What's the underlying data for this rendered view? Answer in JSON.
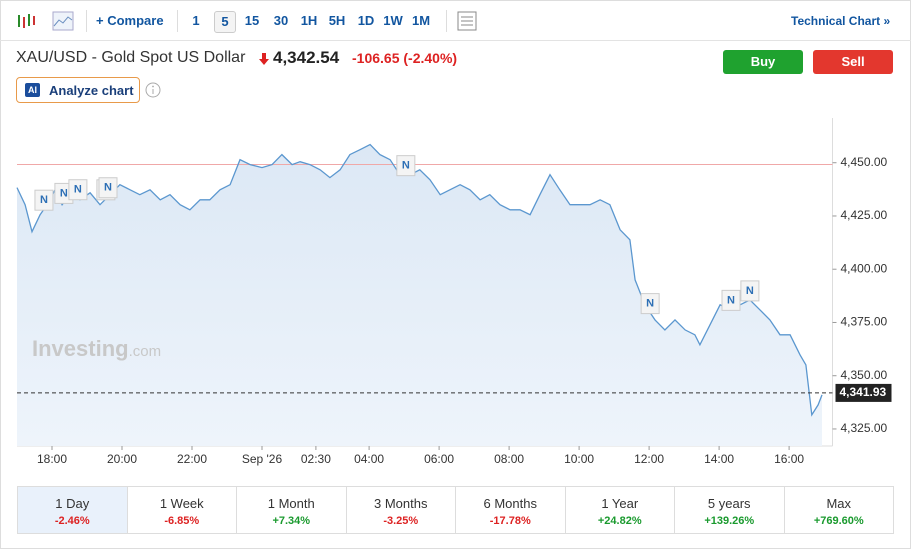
{
  "toolbar": {
    "compare": "Compare",
    "intervals": [
      "1",
      "5",
      "15",
      "30",
      "1H",
      "5H",
      "1D",
      "1W",
      "1M"
    ],
    "selected_index": 1,
    "technical": "Technical Chart »"
  },
  "header": {
    "title": "XAU/USD - Gold Spot US Dollar",
    "price": "4,342.54",
    "change": "-106.65",
    "change_pct": "(-2.40%)",
    "buy": "Buy",
    "sell": "Sell",
    "ai_badge": "AI",
    "analyze": "Analyze chart"
  },
  "watermark": {
    "brand": "Investing",
    "suffix": ".com"
  },
  "chart_data": {
    "type": "area",
    "color": "#5b97cf",
    "x": [
      0,
      0.23,
      0.43,
      0.66,
      0.86,
      1.09,
      1.29,
      1.51,
      1.8,
      2.09,
      2.37,
      2.66,
      2.94,
      3.23,
      3.51,
      3.8,
      4.09,
      4.37,
      4.66,
      4.94,
      5.23,
      5.51,
      5.8,
      6.09,
      6.37,
      6.66,
      7,
      7.29,
      7.57,
      7.86,
      8.09,
      8.37,
      8.66,
      8.94,
      9.23,
      9.51,
      9.8,
      10.09,
      10.37,
      10.66,
      10.94,
      11.23,
      11.51,
      11.8,
      12.09,
      12.37,
      12.66,
      12.94,
      13.23,
      13.51,
      13.8,
      14.09,
      14.37,
      14.66,
      14.94,
      15.23,
      15.51,
      15.8,
      16.09,
      16.37,
      16.66,
      16.94,
      17.23,
      17.51,
      17.66,
      17.94,
      18.23,
      18.51,
      18.8,
      19.09,
      19.37,
      19.51,
      19.8,
      20.09,
      20.37,
      20.66,
      20.94,
      21.23,
      21.51,
      21.8,
      22.09,
      22.37,
      22.54,
      22.71,
      22.89,
      23
    ],
    "values": [
      4438.3,
      4430.3,
      4417.6,
      4425.6,
      4430.3,
      4437.3,
      4430.3,
      4435.0,
      4432.6,
      4435.9,
      4430.3,
      4435.0,
      4439.7,
      4437.3,
      4435.0,
      4437.3,
      4432.6,
      4435.0,
      4430.3,
      4427.9,
      4432.6,
      4432.6,
      4437.3,
      4439.7,
      4451.4,
      4449.1,
      4447.7,
      4449.1,
      4453.8,
      4449.1,
      4450.5,
      4449.1,
      4446.7,
      4443.0,
      4446.7,
      4453.8,
      4456.1,
      4458.5,
      4453.8,
      4451.4,
      4444.4,
      4444.4,
      4446.7,
      4442.0,
      4435.0,
      4437.3,
      4439.7,
      4437.3,
      4432.6,
      4435.0,
      4430.3,
      4427.9,
      4427.9,
      4425.6,
      4435.0,
      4444.4,
      4437.3,
      4430.3,
      4430.3,
      4430.3,
      4432.6,
      4430.3,
      4418.5,
      4413.8,
      4395.0,
      4383.3,
      4376.2,
      4371.5,
      4376.2,
      4371.5,
      4369.2,
      4364.5,
      4373.9,
      4383.3,
      4380.9,
      4383.3,
      4385.6,
      4380.9,
      4376.2,
      4369.2,
      4369.2,
      4359.8,
      4355.1,
      4331.6,
      4336.3,
      4341.0
    ],
    "xlim": [
      0,
      23.3
    ],
    "xticks": [
      {
        "value": 1,
        "label": "18:00"
      },
      {
        "value": 3,
        "label": "20:00"
      },
      {
        "value": 5,
        "label": "22:00"
      },
      {
        "value": 7,
        "label": "Sep '26"
      },
      {
        "value": 8.54,
        "label": "02:30"
      },
      {
        "value": 10.06,
        "label": "04:00"
      },
      {
        "value": 12.06,
        "label": "06:00"
      },
      {
        "value": 14.06,
        "label": "08:00"
      },
      {
        "value": 16.06,
        "label": "10:00"
      },
      {
        "value": 18.06,
        "label": "12:00"
      },
      {
        "value": 20.06,
        "label": "14:00"
      },
      {
        "value": 22.06,
        "label": "16:00"
      }
    ],
    "ylim": [
      4317,
      4471
    ],
    "yticks": [
      {
        "value": 4325,
        "label": "4,325.00"
      },
      {
        "value": 4350,
        "label": "4,350.00"
      },
      {
        "value": 4375,
        "label": "4,375.00"
      },
      {
        "value": 4400,
        "label": "4,400.00"
      },
      {
        "value": 4425,
        "label": "4,425.00"
      },
      {
        "value": 4450,
        "label": "4,450.00"
      }
    ],
    "reference_line": 4449.19,
    "current_price": {
      "value": 4341.93,
      "label": "4,341.93"
    },
    "news": [
      {
        "x": 0.77,
        "label": "N"
      },
      {
        "x": 1.34,
        "label": "N"
      },
      {
        "x": 1.74,
        "label": "N"
      },
      {
        "x": 2.54,
        "label": "N"
      },
      {
        "x": 2.6,
        "label": "N"
      },
      {
        "x": 11.11,
        "label": "N"
      },
      {
        "x": 18.09,
        "label": "N"
      },
      {
        "x": 20.4,
        "label": "N"
      },
      {
        "x": 20.94,
        "label": "N"
      }
    ]
  },
  "periods": [
    {
      "name": "1 Day",
      "change": "-2.46%"
    },
    {
      "name": "1 Week",
      "change": "-6.85%"
    },
    {
      "name": "1 Month",
      "change": "+7.34%"
    },
    {
      "name": "3 Months",
      "change": "-3.25%"
    },
    {
      "name": "6 Months",
      "change": "-17.78%"
    },
    {
      "name": "1 Year",
      "change": "+24.82%"
    },
    {
      "name": "5 years",
      "change": "+139.26%"
    },
    {
      "name": "Max",
      "change": "+769.60%"
    }
  ]
}
